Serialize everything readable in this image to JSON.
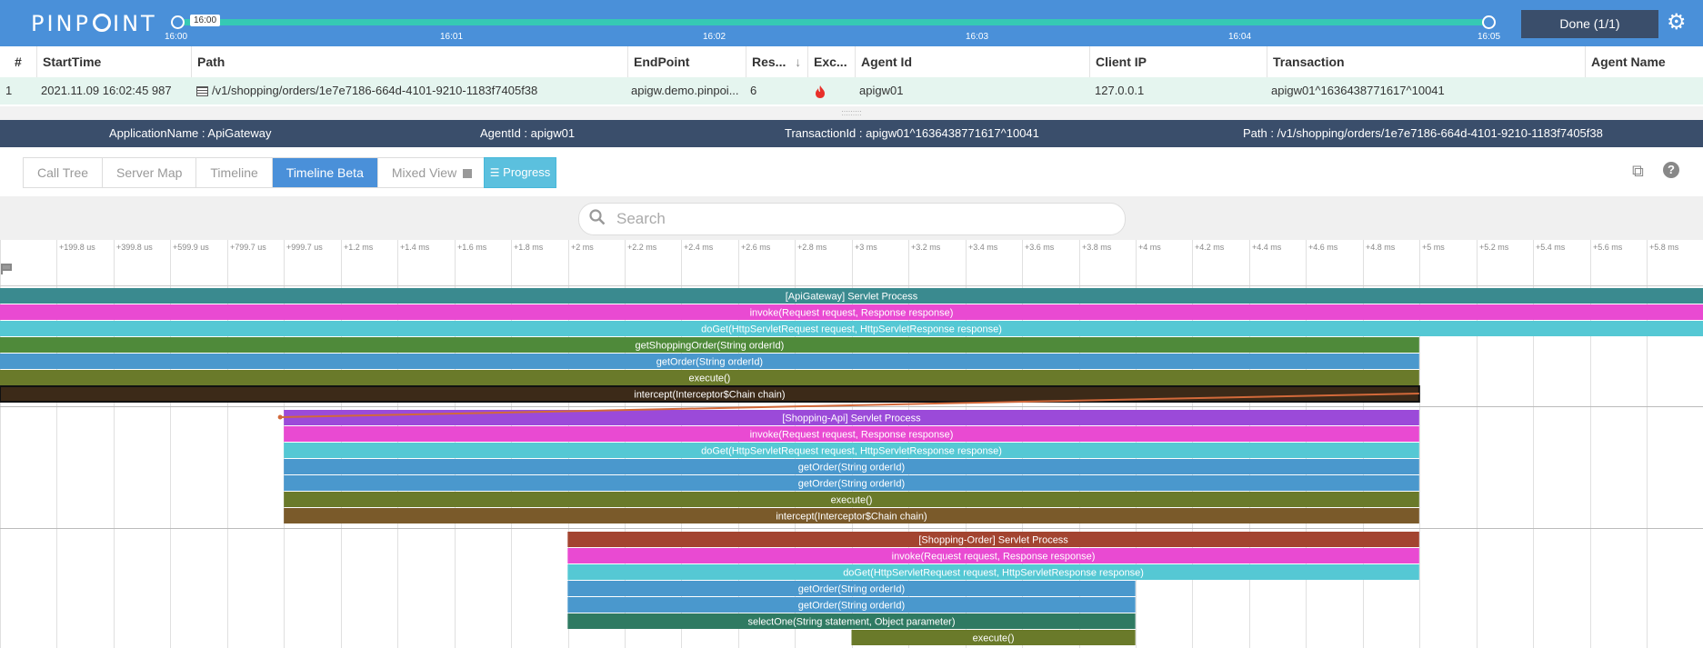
{
  "header": {
    "logo": [
      "PINP",
      "INT"
    ],
    "range_tip": "16:00",
    "ticks": [
      "16:00",
      "16:01",
      "16:02",
      "16:03",
      "16:04",
      "16:05"
    ],
    "done_label": "Done (1/1)",
    "gear_icon": "gear-icon"
  },
  "grid": {
    "columns": [
      "#",
      "StartTime",
      "Path",
      "EndPoint",
      "Res...",
      "Exc...",
      "Agent Id",
      "Client IP",
      "Transaction",
      "Agent Name"
    ],
    "sort_indicator": "↓",
    "row": {
      "index": "1",
      "start_time": "2021.11.09 16:02:45 987",
      "path": "/v1/shopping/orders/1e7e7186-664d-4101-9210-1183f7405f38",
      "endpoint": "apigw.demo.pinpoi...",
      "res": "6",
      "exception_icon": "fire-icon",
      "agent_id": "apigw01",
      "client_ip": "127.0.0.1",
      "transaction": "apigw01^1636438771617^10041",
      "agent_name": ""
    }
  },
  "info": {
    "application": "ApplicationName : ApiGateway",
    "agent": "AgentId : apigw01",
    "transaction": "TransactionId : apigw01^1636438771617^10041",
    "path": "Path : /v1/shopping/orders/1e7e7186-664d-4101-9210-1183f7405f38"
  },
  "tabs": [
    {
      "label": "Call Tree",
      "active": false
    },
    {
      "label": "Server Map",
      "active": false
    },
    {
      "label": "Timeline",
      "active": false
    },
    {
      "label": "Timeline Beta",
      "active": true
    },
    {
      "label": "Mixed View",
      "active": false
    }
  ],
  "progress_label": "Progress",
  "search": {
    "placeholder": "Search",
    "value": ""
  },
  "timeline": {
    "axis_labels": [
      "+199.8 us",
      "+399.8 us",
      "+599.9 us",
      "+799.7 us",
      "+999.7 us",
      "+1.2 ms",
      "+1.4 ms",
      "+1.6 ms",
      "+1.8 ms",
      "+2 ms",
      "+2.2 ms",
      "+2.4 ms",
      "+2.6 ms",
      "+2.8 ms",
      "+3 ms",
      "+3.2 ms",
      "+3.4 ms",
      "+3.6 ms",
      "+3.8 ms",
      "+4 ms",
      "+4.2 ms",
      "+4.4 ms",
      "+4.6 ms",
      "+4.8 ms",
      "+5 ms",
      "+5.2 ms",
      "+5.4 ms",
      "+5.6 ms",
      "+5.8 ms"
    ],
    "total_ms": 6.0,
    "groups": [
      {
        "bars": [
          {
            "label": "[ApiGateway] Servlet Process",
            "start_ms": 0,
            "end_ms": 6.0,
            "color": "#3a8a8f"
          },
          {
            "label": "invoke(Request request, Response response)",
            "start_ms": 0,
            "end_ms": 6.0,
            "color": "#e94ad2"
          },
          {
            "label": "doGet(HttpServletRequest request, HttpServletResponse response)",
            "start_ms": 0,
            "end_ms": 6.0,
            "color": "#55c8d4"
          },
          {
            "label": "getShoppingOrder(String orderId)",
            "start_ms": 0,
            "end_ms": 5.0,
            "color": "#4f8a3a"
          },
          {
            "label": "getOrder(String orderId)",
            "start_ms": 0,
            "end_ms": 5.0,
            "color": "#4a98cd"
          },
          {
            "label": "execute()",
            "start_ms": 0,
            "end_ms": 5.0,
            "color": "#6a7a2a"
          },
          {
            "label": "intercept(Interceptor$Chain chain)",
            "start_ms": 0,
            "end_ms": 5.0,
            "color": "#3c2a18",
            "selected": true
          }
        ]
      },
      {
        "bars": [
          {
            "label": "[Shopping-Api] Servlet Process",
            "start_ms": 1.0,
            "end_ms": 5.0,
            "color": "#9b4ad9"
          },
          {
            "label": "invoke(Request request, Response response)",
            "start_ms": 1.0,
            "end_ms": 5.0,
            "color": "#e94ad2"
          },
          {
            "label": "doGet(HttpServletRequest request, HttpServletResponse response)",
            "start_ms": 1.0,
            "end_ms": 5.0,
            "color": "#55c8d4"
          },
          {
            "label": "getOrder(String orderId)",
            "start_ms": 1.0,
            "end_ms": 5.0,
            "color": "#4a98cd"
          },
          {
            "label": "getOrder(String orderId)",
            "start_ms": 1.0,
            "end_ms": 5.0,
            "color": "#4a98cd"
          },
          {
            "label": "execute()",
            "start_ms": 1.0,
            "end_ms": 5.0,
            "color": "#6a7a2a"
          },
          {
            "label": "intercept(Interceptor$Chain chain)",
            "start_ms": 1.0,
            "end_ms": 5.0,
            "color": "#7a5a2a"
          }
        ]
      },
      {
        "bars": [
          {
            "label": "[Shopping-Order] Servlet Process",
            "start_ms": 2.0,
            "end_ms": 5.0,
            "color": "#a34430"
          },
          {
            "label": "invoke(Request request, Response response)",
            "start_ms": 2.0,
            "end_ms": 5.0,
            "color": "#e94ad2"
          },
          {
            "label": "doGet(HttpServletRequest request, HttpServletResponse response)",
            "start_ms": 2.0,
            "end_ms": 5.0,
            "color": "#55c8d4"
          },
          {
            "label": "getOrder(String orderId)",
            "start_ms": 2.0,
            "end_ms": 4.0,
            "color": "#4a98cd"
          },
          {
            "label": "getOrder(String orderId)",
            "start_ms": 2.0,
            "end_ms": 4.0,
            "color": "#4a98cd"
          },
          {
            "label": "selectOne(String statement, Object parameter)",
            "start_ms": 2.0,
            "end_ms": 4.0,
            "color": "#2f7a62"
          },
          {
            "label": "execute()",
            "start_ms": 3.0,
            "end_ms": 4.0,
            "color": "#6a7a2a"
          }
        ]
      }
    ]
  }
}
